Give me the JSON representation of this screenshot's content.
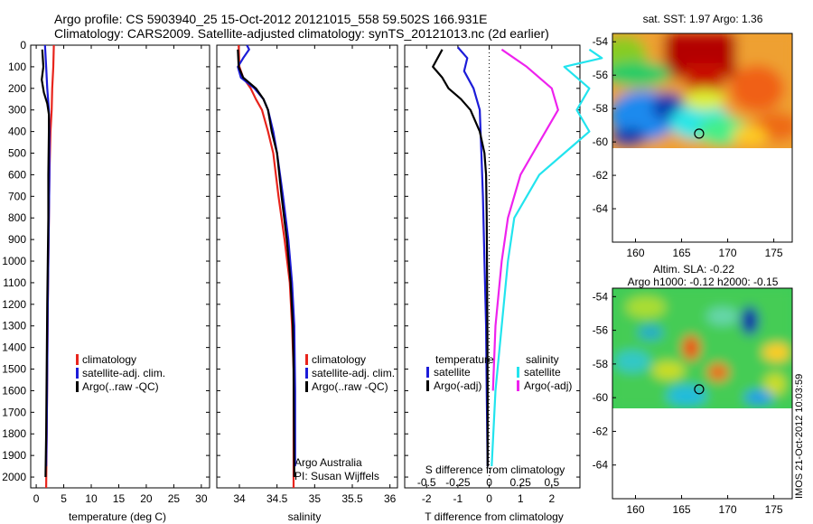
{
  "header": {
    "line1": "Argo profile: CS 5903940_25 15-Oct-2012 20121015_558 59.502S 166.931E",
    "line2": "Climatology: CARS2009. Satellite-adjusted climatology: synTS_20121013.nc (2d earlier)"
  },
  "credit": "IMOS 21-Oct-2012 10:03:59",
  "colors": {
    "climatology": "#e8241c",
    "satellite": "#1c1cd8",
    "argo": "#000000",
    "sat_salinity": "#22e4ee",
    "argo_salinity": "#ee22ee"
  },
  "depth_axis": {
    "ylim": [
      0,
      2050
    ],
    "ticks": [
      0,
      100,
      200,
      300,
      400,
      500,
      600,
      700,
      800,
      900,
      1000,
      1100,
      1200,
      1300,
      1400,
      1500,
      1600,
      1700,
      1800,
      1900,
      2000
    ]
  },
  "chart_data": [
    {
      "type": "line",
      "xlabel": "temperature (deg C)",
      "xlim": [
        -1,
        31.5
      ],
      "xticks": [
        0,
        5,
        10,
        15,
        20,
        25,
        30
      ],
      "legend": [
        "climatology",
        "satellite-adj. clim.",
        "Argo(..raw -QC)"
      ],
      "series": [
        {
          "name": "climatology",
          "color": "#e8241c",
          "points": [
            [
              3.2,
              0
            ],
            [
              3.1,
              100
            ],
            [
              2.9,
              200
            ],
            [
              2.8,
              300
            ],
            [
              2.6,
              400
            ],
            [
              2.5,
              500
            ],
            [
              2.4,
              600
            ],
            [
              2.3,
              800
            ],
            [
              2.2,
              1000
            ],
            [
              2.1,
              1200
            ],
            [
              2.0,
              1500
            ],
            [
              1.9,
              1800
            ],
            [
              1.8,
              2050
            ]
          ]
        },
        {
          "name": "satellite-adj. clim.",
          "color": "#1c1cd8",
          "points": [
            [
              1.6,
              0
            ],
            [
              1.8,
              100
            ],
            [
              2.0,
              200
            ],
            [
              2.3,
              300
            ],
            [
              2.4,
              400
            ],
            [
              2.4,
              600
            ],
            [
              2.3,
              800
            ],
            [
              2.2,
              1000
            ],
            [
              2.1,
              1200
            ],
            [
              2.0,
              1500
            ],
            [
              1.9,
              1800
            ],
            [
              1.8,
              1950
            ]
          ]
        },
        {
          "name": "Argo(..raw -QC)",
          "color": "#000000",
          "points": [
            [
              1.1,
              20
            ],
            [
              1.3,
              100
            ],
            [
              1.0,
              160
            ],
            [
              1.4,
              220
            ],
            [
              2.0,
              270
            ],
            [
              2.3,
              320
            ],
            [
              2.3,
              400
            ],
            [
              2.2,
              600
            ],
            [
              2.2,
              800
            ],
            [
              2.1,
              1000
            ],
            [
              2.0,
              1200
            ],
            [
              1.9,
              1500
            ],
            [
              1.8,
              1800
            ],
            [
              1.7,
              2000
            ]
          ]
        }
      ]
    },
    {
      "type": "line",
      "xlabel": "salinity",
      "xlim": [
        33.7,
        36.1
      ],
      "xticks": [
        34,
        34.5,
        35,
        35.5,
        36
      ],
      "legend": [
        "climatology",
        "satellite-adj. clim.",
        "Argo(..raw -QC)"
      ],
      "annotations": [
        "Argo Australia",
        "PI: Susan Wijffels"
      ],
      "series": [
        {
          "name": "climatology",
          "color": "#e8241c",
          "points": [
            [
              33.99,
              0
            ],
            [
              34.0,
              100
            ],
            [
              34.05,
              150
            ],
            [
              34.15,
              200
            ],
            [
              34.22,
              250
            ],
            [
              34.3,
              300
            ],
            [
              34.38,
              400
            ],
            [
              34.45,
              500
            ],
            [
              34.52,
              700
            ],
            [
              34.6,
              900
            ],
            [
              34.67,
              1100
            ],
            [
              34.7,
              1300
            ],
            [
              34.72,
              1500
            ],
            [
              34.72,
              2050
            ]
          ]
        },
        {
          "name": "satellite-adj. clim.",
          "color": "#1c1cd8",
          "points": [
            [
              34.1,
              0
            ],
            [
              34.13,
              20
            ],
            [
              34.05,
              60
            ],
            [
              33.98,
              100
            ],
            [
              34.02,
              150
            ],
            [
              34.2,
              200
            ],
            [
              34.32,
              250
            ],
            [
              34.38,
              300
            ],
            [
              34.45,
              400
            ],
            [
              34.5,
              500
            ],
            [
              34.58,
              700
            ],
            [
              34.65,
              900
            ],
            [
              34.7,
              1100
            ],
            [
              34.73,
              1300
            ],
            [
              34.74,
              1600
            ],
            [
              34.74,
              1950
            ]
          ]
        },
        {
          "name": "Argo(..raw -QC)",
          "color": "#000000",
          "points": [
            [
              33.98,
              20
            ],
            [
              33.99,
              100
            ],
            [
              34.05,
              150
            ],
            [
              34.22,
              200
            ],
            [
              34.32,
              250
            ],
            [
              34.38,
              300
            ],
            [
              34.43,
              400
            ],
            [
              34.5,
              500
            ],
            [
              34.56,
              700
            ],
            [
              34.63,
              900
            ],
            [
              34.68,
              1100
            ],
            [
              34.71,
              1300
            ],
            [
              34.72,
              1500
            ],
            [
              34.73,
              2000
            ]
          ]
        }
      ]
    },
    {
      "type": "line",
      "xlabel": "T difference from climatology",
      "xlim": [
        -2.7,
        2.9
      ],
      "xticks": [
        -2,
        -1,
        0,
        1,
        2
      ],
      "x2label": "S difference from climatology",
      "x2ticks": [
        "-0.5",
        "-0.25",
        "0",
        "0.25",
        "0.5"
      ],
      "legend": [
        "temperature",
        "satellite",
        "Argo(-adj)",
        "salinity",
        "satellite",
        "Argo(-adj)"
      ],
      "series": [
        {
          "name": "satellite",
          "quantity": "temperature",
          "color": "#1c1cd8",
          "points": [
            [
              -1.0,
              10
            ],
            [
              -0.7,
              60
            ],
            [
              -0.8,
              120
            ],
            [
              -0.5,
              200
            ],
            [
              -0.3,
              300
            ],
            [
              -0.25,
              500
            ],
            [
              -0.2,
              700
            ],
            [
              -0.15,
              1000
            ],
            [
              -0.1,
              1300
            ],
            [
              -0.08,
              1600
            ],
            [
              -0.05,
              1950
            ]
          ]
        },
        {
          "name": "Argo(-adj)",
          "quantity": "temperature",
          "color": "#000000",
          "points": [
            [
              -1.5,
              20
            ],
            [
              -1.8,
              100
            ],
            [
              -1.5,
              150
            ],
            [
              -1.3,
              200
            ],
            [
              -0.9,
              250
            ],
            [
              -0.6,
              300
            ],
            [
              -0.3,
              400
            ],
            [
              -0.15,
              500
            ],
            [
              -0.1,
              600
            ],
            [
              -0.08,
              800
            ],
            [
              -0.07,
              1000
            ],
            [
              -0.06,
              1300
            ],
            [
              -0.05,
              1600
            ],
            [
              -0.05,
              1950
            ]
          ]
        },
        {
          "name": "satellite",
          "quantity": "salinity",
          "color": "#22e4ee",
          "points": [
            [
              0.8,
              20
            ],
            [
              0.9,
              60
            ],
            [
              0.6,
              100
            ],
            [
              0.8,
              200
            ],
            [
              0.7,
              300
            ],
            [
              0.8,
              400
            ],
            [
              0.6,
              500
            ],
            [
              0.4,
              600
            ],
            [
              0.2,
              800
            ],
            [
              0.15,
              1000
            ],
            [
              0.1,
              1300
            ],
            [
              0.05,
              1600
            ],
            [
              0.02,
              1950
            ]
          ]
        },
        {
          "name": "Argo(-adj)",
          "quantity": "salinity",
          "color": "#ee22ee",
          "points": [
            [
              0.1,
              20
            ],
            [
              0.3,
              100
            ],
            [
              0.5,
              200
            ],
            [
              0.55,
              300
            ],
            [
              0.45,
              400
            ],
            [
              0.35,
              500
            ],
            [
              0.25,
              600
            ],
            [
              0.15,
              800
            ],
            [
              0.1,
              1000
            ],
            [
              0.05,
              1300
            ],
            [
              0.03,
              1600
            ]
          ]
        }
      ]
    },
    {
      "type": "heatmap",
      "title": "sat. SST: 1.97 Argo: 1.36",
      "xlim": [
        157.5,
        177
      ],
      "ylim": [
        -66,
        -53.5
      ],
      "xticks": [
        160,
        165,
        170,
        175
      ],
      "yticks": [
        -54,
        -56,
        -58,
        -60,
        -62,
        -64
      ],
      "marker": {
        "lon": 166.9,
        "lat": -59.5
      }
    },
    {
      "type": "heatmap",
      "title": "Altim. SLA: -0.22",
      "subtitle": "Argo h1000: -0.12 h2000: -0.15",
      "xlim": [
        157.5,
        177
      ],
      "ylim": [
        -66,
        -53.5
      ],
      "xticks": [
        160,
        165,
        170,
        175
      ],
      "yticks": [
        -54,
        -56,
        -58,
        -60,
        -62,
        -64
      ],
      "marker": {
        "lon": 166.9,
        "lat": -59.5
      }
    }
  ]
}
